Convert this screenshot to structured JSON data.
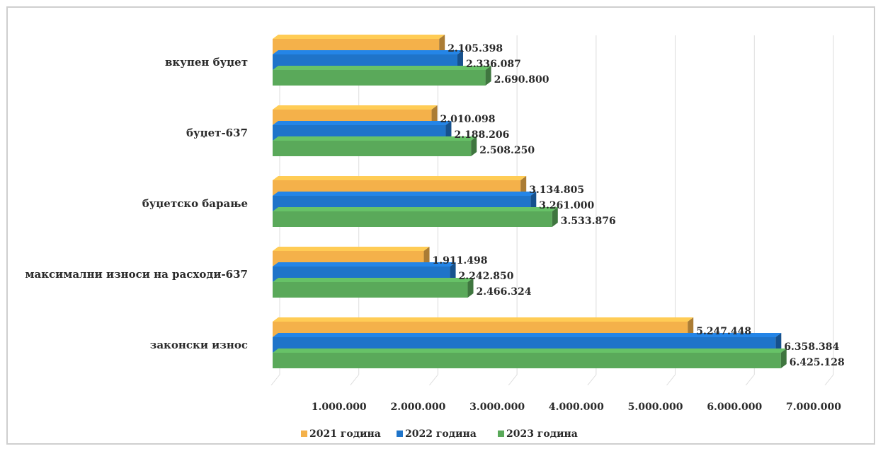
{
  "chart_data": {
    "type": "bar",
    "orientation": "horizontal",
    "style": "3d",
    "categories": [
      "вкупен буџет",
      "буџет-637",
      "буџетско барање",
      "максимални износи на расходи-637",
      "законски износ"
    ],
    "series": [
      {
        "name": "2021 година",
        "color": "#f4b14a",
        "values": [
          2105398,
          2010098,
          3134805,
          1911498,
          5247448
        ],
        "labels": [
          "2.105.398",
          "2.010.098",
          "3.134.805",
          "1.911.498",
          "5.247.448"
        ]
      },
      {
        "name": "2022 година",
        "color": "#1f74c9",
        "values": [
          2336087,
          2188206,
          3261000,
          2242850,
          6358384
        ],
        "labels": [
          "2.336.087",
          "2.188.206",
          "3.261.000",
          "2.242.850",
          "6.358.384"
        ]
      },
      {
        "name": "2023 година",
        "color": "#5aa95a",
        "values": [
          2690800,
          2508250,
          3533876,
          2466324,
          6425128
        ],
        "labels": [
          "2.690.800",
          "2.508.250",
          "3.533.876",
          "2.466.324",
          "6.425.128"
        ]
      }
    ],
    "xlim": [
      0,
      7000000
    ],
    "ticks": [
      1000000,
      2000000,
      3000000,
      4000000,
      5000000,
      6000000,
      7000000
    ],
    "tick_labels": [
      "1.000.000",
      "2.000.000",
      "3.000.000",
      "4.000.000",
      "5.000.000",
      "6.000.000",
      "7.000.000"
    ],
    "grid": true,
    "legend": "bottom"
  }
}
